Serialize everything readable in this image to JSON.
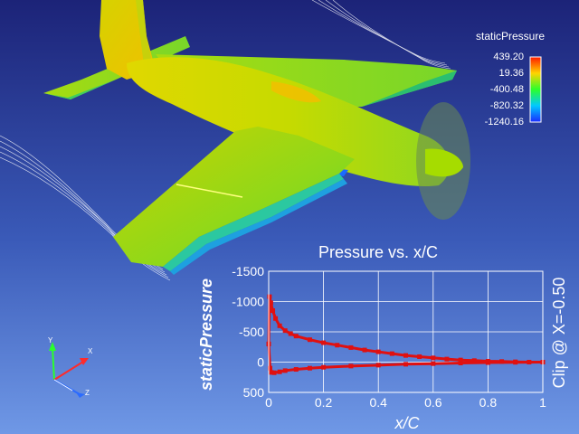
{
  "scene": {
    "background_top": "#1c2378",
    "background_bottom": "#6f98e6",
    "subject": "aircraft-surface-colored-by-pressure"
  },
  "legend": {
    "title": "staticPressure",
    "ticks": [
      "439.20",
      "19.36",
      "-400.48",
      "-820.32",
      "-1240.16"
    ],
    "colormap": [
      "#ff1a00",
      "#ffd400",
      "#2bff2b",
      "#00c8ff",
      "#1a2bff"
    ]
  },
  "axes_triad": {
    "x": "X",
    "y": "Y",
    "z": "Z"
  },
  "chart_data": {
    "type": "line",
    "title": "Pressure vs. x/C",
    "xlabel": "x/C",
    "ylabel": "staticPressure",
    "right_label": "Clip @ X=-0.50",
    "xlim": [
      0,
      1
    ],
    "ylim": [
      500,
      -1500
    ],
    "y_inverted": true,
    "xticks": [
      0,
      0.2,
      0.4,
      0.6,
      0.8,
      1
    ],
    "xtick_labels": [
      "0",
      "0.2",
      "0.4",
      "0.6",
      "0.8",
      "1"
    ],
    "yticks": [
      -1500,
      -1000,
      -500,
      0,
      500
    ],
    "ytick_labels": [
      "-1500",
      "-1000",
      "-500",
      "0",
      "500"
    ],
    "grid": true,
    "color": "#e01010",
    "series": [
      {
        "x": [
          0.0,
          0.003,
          0.008,
          0.015,
          0.025,
          0.04,
          0.06,
          0.08,
          0.1,
          0.15,
          0.2,
          0.25,
          0.3,
          0.35,
          0.4,
          0.45,
          0.5,
          0.55,
          0.6,
          0.65,
          0.7,
          0.75,
          0.8,
          0.85,
          0.9,
          0.95,
          1.0
        ],
        "values": [
          -300,
          -1080,
          -980,
          -850,
          -720,
          -600,
          -520,
          -470,
          -430,
          -370,
          -320,
          -280,
          -240,
          -200,
          -170,
          -140,
          -110,
          -90,
          -70,
          -50,
          -35,
          -25,
          -15,
          -10,
          -5,
          0,
          0
        ]
      },
      {
        "x": [
          0.0,
          0.005,
          0.01,
          0.02,
          0.04,
          0.06,
          0.1,
          0.15,
          0.2,
          0.3,
          0.4,
          0.5,
          0.6,
          0.7,
          0.8,
          0.9,
          1.0
        ],
        "values": [
          -300,
          100,
          170,
          175,
          160,
          140,
          120,
          100,
          85,
          65,
          50,
          35,
          25,
          15,
          8,
          3,
          0
        ]
      }
    ]
  }
}
